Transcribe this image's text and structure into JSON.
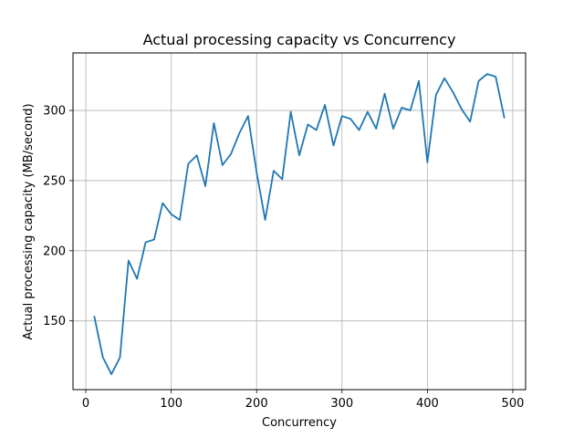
{
  "chart_data": {
    "type": "line",
    "title": "Actual processing capacity vs Concurrency",
    "xlabel": "Concurrency",
    "ylabel": "Actual processing capacity (MB/second)",
    "xlim": [
      -15,
      515
    ],
    "ylim": [
      101,
      341
    ],
    "xticks": [
      0,
      100,
      200,
      300,
      400,
      500
    ],
    "yticks": [
      150,
      200,
      250,
      300
    ],
    "grid": true,
    "line_color": "#1f77b4",
    "x": [
      10,
      20,
      30,
      40,
      50,
      60,
      70,
      80,
      90,
      100,
      110,
      120,
      130,
      140,
      150,
      160,
      170,
      180,
      190,
      200,
      210,
      220,
      230,
      240,
      250,
      260,
      270,
      280,
      290,
      300,
      310,
      320,
      330,
      340,
      350,
      360,
      370,
      380,
      390,
      400,
      410,
      420,
      430,
      440,
      450,
      460,
      470,
      480,
      490
    ],
    "values": [
      153,
      124,
      112,
      124,
      193,
      180,
      206,
      208,
      234,
      226,
      222,
      262,
      268,
      246,
      291,
      261,
      269,
      284,
      296,
      256,
      222,
      257,
      251,
      299,
      268,
      290,
      286,
      304,
      275,
      296,
      294,
      286,
      299,
      287,
      312,
      287,
      302,
      300,
      321,
      263,
      311,
      323,
      313,
      301,
      292,
      321,
      326,
      324,
      295
    ]
  }
}
